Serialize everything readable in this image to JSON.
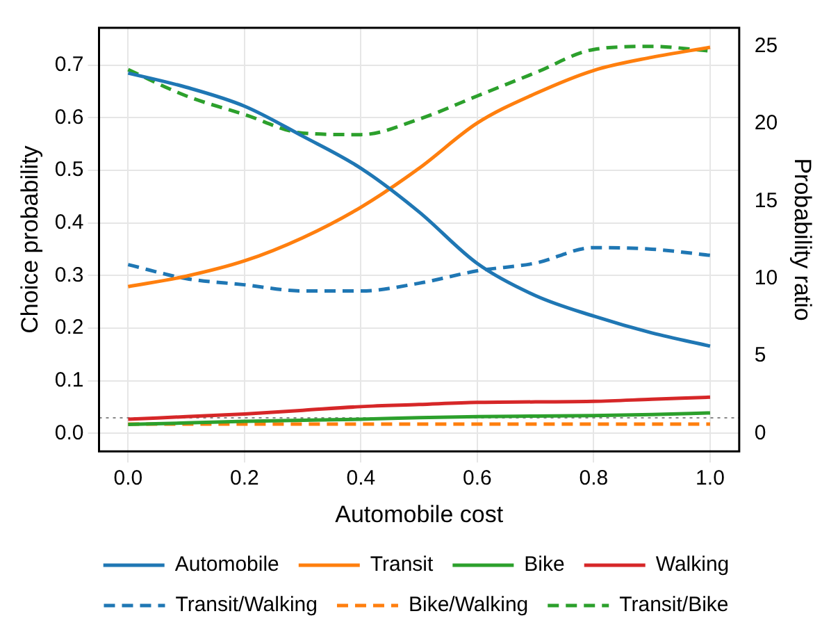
{
  "chart_data": {
    "type": "line",
    "xlabel": "Automobile cost",
    "ylabel": "Choice probability",
    "y2label": "Probability ratio",
    "x": [
      0,
      0.1,
      0.2,
      0.3,
      0.4,
      0.5,
      0.6,
      0.7,
      0.8,
      0.9,
      1.0
    ],
    "xlim": [
      -0.05,
      1.05
    ],
    "xticks": [
      {
        "value": 0,
        "label": "0.0"
      },
      0.2,
      0.4,
      0.6,
      0.8,
      {
        "value": 1,
        "label": "1.0"
      }
    ],
    "ylim": [
      -0.034,
      0.771
    ],
    "yticks": [
      {
        "value": 0,
        "label": "0.0"
      },
      0.1,
      0.2,
      0.3,
      0.4,
      0.5,
      0.6,
      0.7
    ],
    "y2lim": [
      -1.16,
      26.2
    ],
    "y2ticks": [
      0,
      5,
      10,
      15,
      20,
      25
    ],
    "grid": true,
    "legend": "bottom",
    "marker": "none",
    "ref_lines": [
      {
        "axis": "y2",
        "value": 1,
        "color": "#888888",
        "line_style": "dotted"
      }
    ],
    "series": [
      {
        "name": "Automobile",
        "color": "#1f77b4",
        "line_style": "solid",
        "values": [
          0.685,
          0.658,
          0.622,
          0.565,
          0.504,
          0.421,
          0.323,
          0.262,
          0.223,
          0.191,
          0.166
        ]
      },
      {
        "name": "Transit",
        "color": "#ff7f0e",
        "line_style": "solid",
        "values": [
          0.279,
          0.299,
          0.328,
          0.372,
          0.43,
          0.504,
          0.59,
          0.646,
          0.69,
          0.715,
          0.734
        ]
      },
      {
        "name": "Bike",
        "color": "#2ca02c",
        "line_style": "solid",
        "values": [
          0.017,
          0.02,
          0.023,
          0.025,
          0.027,
          0.03,
          0.032,
          0.033,
          0.034,
          0.036,
          0.039
        ]
      },
      {
        "name": "Walking",
        "color": "#d62728",
        "line_style": "solid",
        "values": [
          0.027,
          0.032,
          0.037,
          0.044,
          0.051,
          0.055,
          0.059,
          0.06,
          0.061,
          0.065,
          0.069
        ]
      },
      {
        "name": "Transit/Walking",
        "color": "#1f77b4",
        "line_style": "dashed",
        "axis": "y2",
        "values": [
          10.9,
          10.0,
          9.6,
          9.2,
          9.2,
          9.7,
          10.5,
          11.0,
          12.0,
          11.9,
          11.5
        ]
      },
      {
        "name": "Bike/Walking",
        "color": "#ff7f0e",
        "line_style": "dashed",
        "axis": "y2",
        "values": [
          0.6,
          0.6,
          0.6,
          0.6,
          0.6,
          0.6,
          0.6,
          0.6,
          0.6,
          0.6,
          0.6
        ]
      },
      {
        "name": "Transit/Bike",
        "color": "#2ca02c",
        "line_style": "dashed",
        "axis": "y2",
        "values": [
          23.5,
          21.8,
          20.6,
          19.4,
          19.3,
          20.3,
          21.8,
          23.3,
          24.8,
          25.0,
          24.7
        ]
      }
    ]
  }
}
